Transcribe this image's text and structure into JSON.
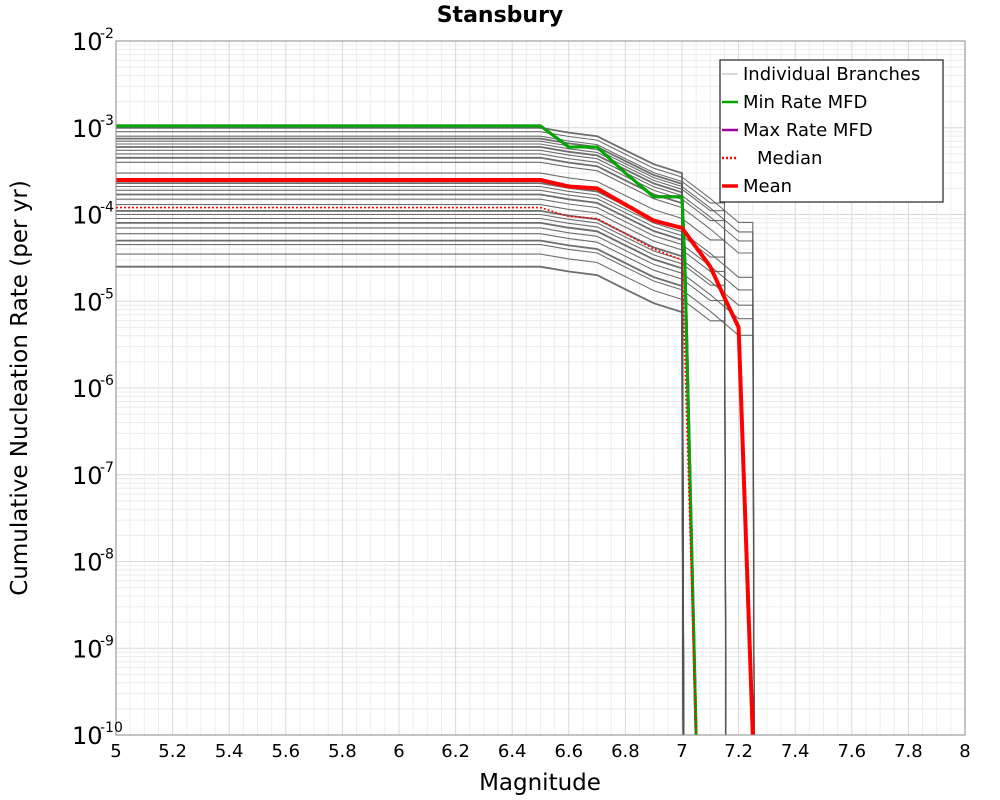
{
  "chart_data": {
    "type": "line",
    "title": "Stansbury",
    "xlabel": "Magnitude",
    "ylabel": "Cumulative Nucleation Rate (per yr)",
    "xlim": [
      5,
      8
    ],
    "ylim": [
      1e-10,
      0.01
    ],
    "yscale": "log",
    "grid": true,
    "legend_position": "top-right",
    "x_ticks": [
      "5",
      "5.2",
      "5.4",
      "5.6",
      "5.8",
      "6",
      "6.2",
      "6.4",
      "6.6",
      "6.8",
      "7",
      "7.2",
      "7.4",
      "7.6",
      "7.8",
      "8"
    ],
    "y_ticks": [
      {
        "base": "10",
        "exp": "-2",
        "value": 0.01
      },
      {
        "base": "10",
        "exp": "-3",
        "value": 0.001
      },
      {
        "base": "10",
        "exp": "-4",
        "value": 0.0001
      },
      {
        "base": "10",
        "exp": "-5",
        "value": 1e-05
      },
      {
        "base": "10",
        "exp": "-6",
        "value": 1e-06
      },
      {
        "base": "10",
        "exp": "-7",
        "value": 1e-07
      },
      {
        "base": "10",
        "exp": "-8",
        "value": 1e-08
      },
      {
        "base": "10",
        "exp": "-9",
        "value": 1e-09
      },
      {
        "base": "10",
        "exp": "-10",
        "value": 1e-10
      }
    ],
    "legend": [
      {
        "label": "Individual Branches",
        "color": "#b0b0b0",
        "style": "solid-thin"
      },
      {
        "label": "Min Rate MFD",
        "color": "#00aa00",
        "style": "solid"
      },
      {
        "label": "Max Rate MFD",
        "color": "#a000a0",
        "style": "solid"
      },
      {
        "label": "Median",
        "color": "#ff0000",
        "style": "dotted"
      },
      {
        "label": "Mean",
        "color": "#ff0000",
        "style": "solid-thick"
      }
    ],
    "series": [
      {
        "name": "Max Rate MFD",
        "color": "#a000a0",
        "x": [
          5.0,
          6.5,
          6.6,
          6.7,
          6.8,
          6.9,
          7.0,
          7.01,
          7.05
        ],
        "y": [
          0.00105,
          0.00105,
          0.0006,
          0.0006,
          0.0003,
          0.00016,
          0.00016,
          3e-05,
          1e-10
        ]
      },
      {
        "name": "Min Rate MFD",
        "color": "#00aa00",
        "x": [
          5.0,
          6.5,
          6.6,
          6.7,
          6.8,
          6.9,
          7.0,
          7.01,
          7.05
        ],
        "y": [
          0.00105,
          0.00105,
          0.0006,
          0.0006,
          0.0003,
          0.00016,
          0.00016,
          3e-05,
          1e-10
        ]
      },
      {
        "name": "Mean",
        "color": "#ff0000",
        "x": [
          5.0,
          6.5,
          6.6,
          6.7,
          6.8,
          6.9,
          7.0,
          7.1,
          7.15,
          7.2,
          7.25
        ],
        "y": [
          0.00025,
          0.00025,
          0.00021,
          0.0002,
          0.00013,
          8.5e-05,
          7e-05,
          2.5e-05,
          1.1e-05,
          5e-06,
          1e-10
        ]
      },
      {
        "name": "Median",
        "color": "#ff0000",
        "x": [
          5.0,
          6.5,
          6.6,
          6.7,
          6.8,
          6.9,
          7.0,
          7.05
        ],
        "y": [
          0.00012,
          0.00012,
          9.5e-05,
          9e-05,
          6e-05,
          4e-05,
          3e-05,
          1e-10
        ]
      }
    ],
    "branches": {
      "color": "#555555",
      "levels": [
        2.5e-05,
        3.5e-05,
        4.5e-05,
        5e-05,
        6e-05,
        7e-05,
        8e-05,
        9e-05,
        0.0001,
        0.00011,
        0.00013,
        0.00015,
        0.00017,
        0.00019,
        0.00021,
        0.00023,
        0.0003,
        0.0004,
        0.00045,
        0.0005,
        0.00055,
        0.0006,
        0.00065,
        0.0007,
        0.00075,
        0.0008,
        0.0009,
        0.001
      ]
    }
  }
}
